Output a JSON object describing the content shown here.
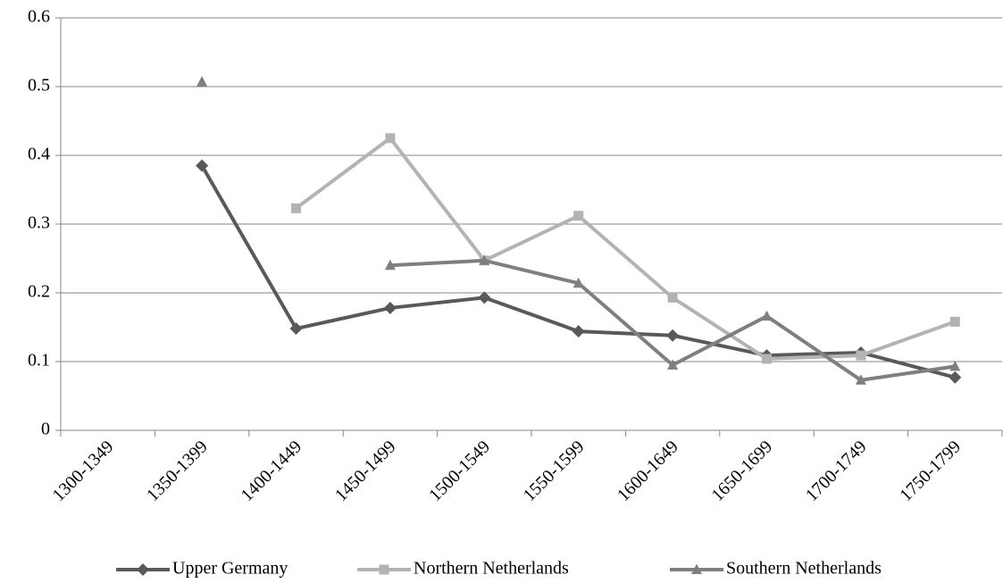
{
  "chart_data": {
    "type": "line",
    "categories": [
      "1300-1349",
      "1350-1399",
      "1400-1449",
      "1450-1499",
      "1500-1549",
      "1550-1599",
      "1600-1649",
      "1650-1699",
      "1700-1749",
      "1750-1799"
    ],
    "series": [
      {
        "name": "Upper Germany",
        "color": "#595959",
        "marker": "diamond",
        "values": [
          null,
          0.385,
          0.148,
          0.178,
          0.193,
          0.144,
          0.138,
          0.109,
          0.113,
          0.077
        ]
      },
      {
        "name": "Northern Netherlands",
        "color": "#b3b3b3",
        "marker": "square",
        "values": [
          null,
          null,
          0.323,
          0.425,
          0.247,
          0.312,
          0.193,
          0.104,
          0.109,
          0.158
        ]
      },
      {
        "name": "Southern Netherlands",
        "color": "#7f7f7f",
        "marker": "triangle",
        "values": [
          null,
          0.507,
          null,
          0.24,
          0.247,
          0.214,
          0.095,
          0.166,
          0.073,
          0.093
        ]
      }
    ],
    "ylim": [
      0,
      0.6
    ],
    "yticks": [
      0,
      0.1,
      0.2,
      0.3,
      0.4,
      0.5,
      0.6
    ],
    "grid": true,
    "legend": "bottom"
  }
}
